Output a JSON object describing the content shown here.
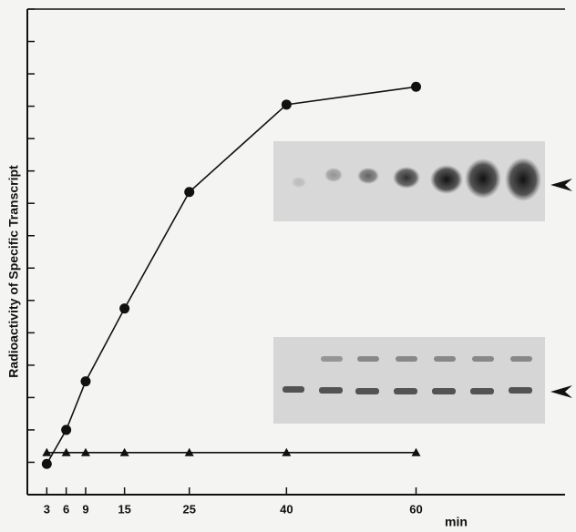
{
  "chart_data": {
    "type": "line",
    "x_label": "min",
    "y_label": "Radioactivity of Specific Transcript",
    "x": [
      3,
      6,
      9,
      15,
      25,
      40,
      60
    ],
    "series": [
      {
        "marker": "circle",
        "color": "#111111",
        "values": [
          0.95,
          2.0,
          3.5,
          5.75,
          9.35,
          12.05,
          12.6
        ]
      },
      {
        "marker": "triangle",
        "color": "#111111",
        "values": [
          1.3,
          1.3,
          1.3,
          1.3,
          1.3,
          1.3,
          1.3
        ]
      }
    ],
    "xlim": [
      0,
      83
    ],
    "ylim": [
      0,
      15
    ],
    "xticks": [
      3,
      6,
      9,
      15,
      25,
      40,
      60
    ],
    "yticks": [
      0,
      1,
      2,
      3,
      4,
      5,
      6,
      7,
      8,
      9,
      10,
      11,
      12,
      13,
      14,
      15
    ]
  }
}
